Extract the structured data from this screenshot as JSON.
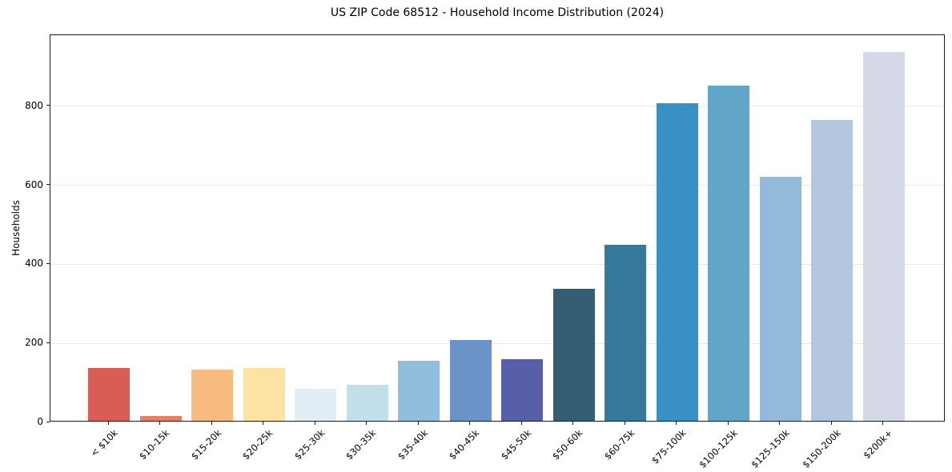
{
  "chart_data": {
    "type": "bar",
    "title": "US ZIP Code 68512 - Household Income Distribution (2024)",
    "xlabel": "",
    "ylabel": "Households",
    "categories": [
      "< $10k",
      "$10-15k",
      "$15-20k",
      "$20-25k",
      "$25-30k",
      "$30-35k",
      "$35-40k",
      "$40-45k",
      "$45-50k",
      "$50-60k",
      "$60-75k",
      "$75-100k",
      "$100-125k",
      "$125-150k",
      "$150-200k",
      "$200k+"
    ],
    "values": [
      133,
      12,
      130,
      133,
      81,
      92,
      152,
      205,
      155,
      334,
      445,
      803,
      848,
      618,
      762,
      933
    ],
    "bar_colors": [
      "#d95c57",
      "#e88063",
      "#f9bc80",
      "#fce3a4",
      "#e1eef5",
      "#c2e0ec",
      "#92bedd",
      "#6b93c7",
      "#575fab",
      "#345e74",
      "#35799d",
      "#3890c4",
      "#62a6ca",
      "#93badb",
      "#b4c7e0",
      "#d5d8e7"
    ],
    "ylim": [
      0,
      980
    ],
    "yticks": [
      0,
      200,
      400,
      600,
      800
    ],
    "grid": "horizontal",
    "legend_position": "none"
  },
  "colors": {
    "background": "#ffffff",
    "gridline": "#e8e8f0",
    "spine": "#1a1a1a",
    "text": "#000000"
  }
}
